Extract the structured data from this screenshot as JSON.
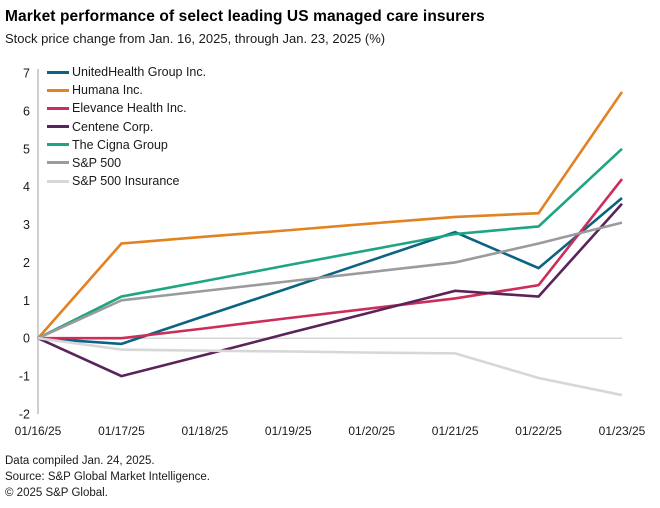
{
  "header": {
    "title": "Market performance of select leading US managed care insurers",
    "subtitle": "Stock price change from Jan. 16, 2025, through Jan. 23, 2025 (%)"
  },
  "chart_data": {
    "type": "line",
    "x": [
      "01/16/25",
      "01/17/25",
      "01/18/25",
      "01/19/25",
      "01/20/25",
      "01/21/25",
      "01/22/25",
      "01/23/25"
    ],
    "series": [
      {
        "name": "UnitedHealth Group Inc.",
        "color": "#0a6482",
        "values": [
          0,
          -0.15,
          0.59,
          1.32,
          2.06,
          2.8,
          1.85,
          3.7
        ]
      },
      {
        "name": "Humana Inc.",
        "color": "#e28220",
        "values": [
          0,
          2.5,
          2.68,
          2.85,
          3.03,
          3.2,
          3.3,
          6.5
        ]
      },
      {
        "name": "Elevance Health Inc.",
        "color": "#cd2d5a",
        "values": [
          0,
          0,
          0.26,
          0.53,
          0.79,
          1.05,
          1.4,
          4.2
        ]
      },
      {
        "name": "Centene Corp.",
        "color": "#5a235a",
        "values": [
          0,
          -1.0,
          -0.44,
          0.13,
          0.69,
          1.25,
          1.1,
          3.55
        ]
      },
      {
        "name": "The Cigna Group",
        "color": "#1ea582",
        "values": [
          0,
          1.1,
          1.51,
          1.93,
          2.34,
          2.75,
          2.95,
          5.0
        ]
      },
      {
        "name": "S&P 500",
        "color": "#9b9b9b",
        "values": [
          0,
          1.0,
          1.25,
          1.5,
          1.75,
          2.0,
          2.5,
          3.05
        ]
      },
      {
        "name": "S&P 500 Insurance",
        "color": "#d7d7d7",
        "values": [
          0,
          -0.3,
          -0.33,
          -0.35,
          -0.38,
          -0.4,
          -1.05,
          -1.5
        ]
      }
    ],
    "ylim": [
      -2,
      7
    ],
    "ytick_step": 1,
    "yticks": [
      7,
      6,
      5,
      4,
      3,
      2,
      1,
      0,
      -1,
      -2
    ],
    "grid": "none",
    "zero_line": true,
    "axis_color": "#cfcfcf",
    "legend_position": "top-left-inside"
  },
  "footer": {
    "line1": "Data compiled Jan. 24, 2025.",
    "line2": "Source: S&P Global Market Intelligence.",
    "line3": "© 2025 S&P Global."
  }
}
